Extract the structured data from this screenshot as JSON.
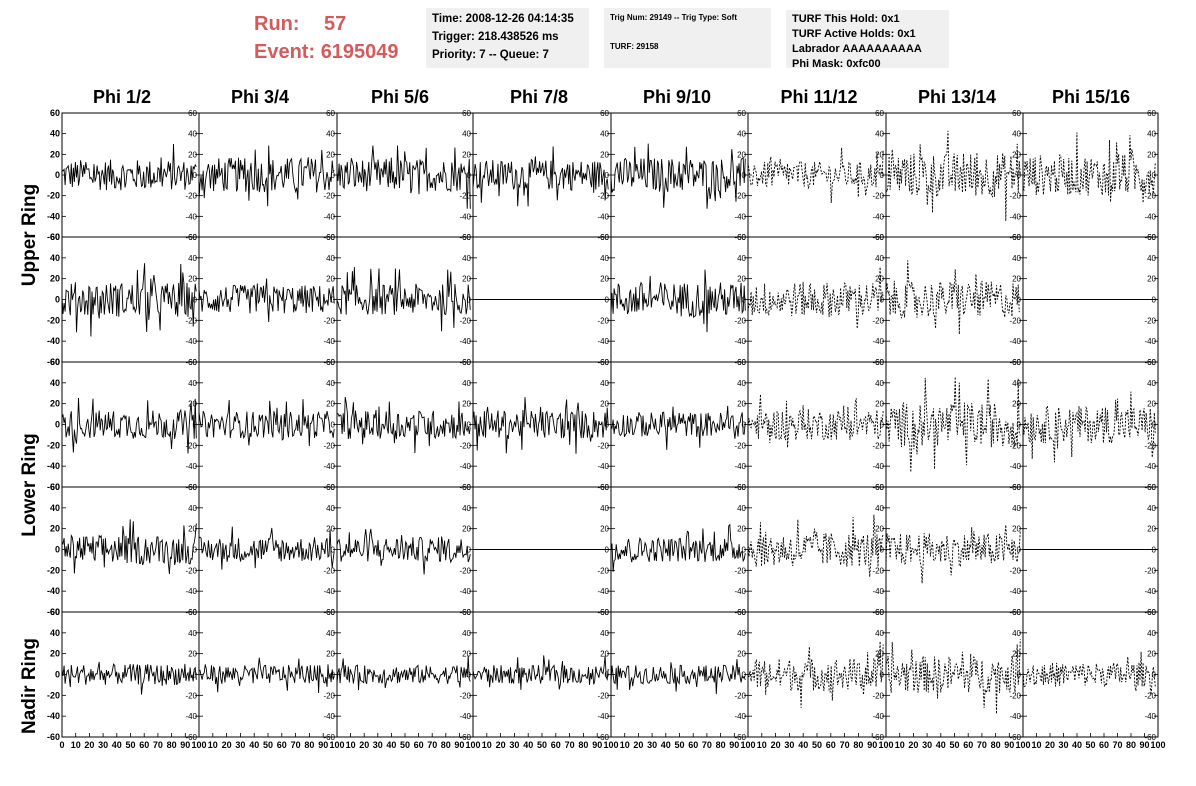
{
  "header": {
    "run_label": "Run:",
    "run_value": "57",
    "event_label": "Event:",
    "event_value": "6195049",
    "time": "Time: 2008-12-26 04:14:35",
    "trigger": "Trigger: 218.438526 ms",
    "priority": "Priority: 7 -- Queue: 7",
    "trig_num": "Trig Num: 29149 -- Trig Type: Soft",
    "turf": "TURF: 29158",
    "turf_this_hold": "TURF This Hold: 0x1",
    "turf_active_holds": "TURF Active Holds: 0x1",
    "labrador": "Labrador AAAAAAAAAA",
    "phi_mask": "Phi Mask: 0xfc00"
  },
  "columns": [
    "Phi 1/2",
    "Phi 3/4",
    "Phi 5/6",
    "Phi 7/8",
    "Phi 9/10",
    "Phi 11/12",
    "Phi 13/14",
    "Phi 15/16"
  ],
  "rows": [
    "Upper Ring",
    "Lower Ring",
    "Nadir Ring"
  ],
  "chart_data": {
    "type": "line",
    "grid_rows": 5,
    "grid_cols": 8,
    "xlim": [
      0,
      100
    ],
    "ylim": [
      -60,
      60
    ],
    "y_ticks": [
      -60,
      -40,
      -20,
      0,
      20,
      40,
      60
    ],
    "x_tick_labels": [
      "0",
      "10",
      "20",
      "30",
      "40",
      "50",
      "60",
      "70",
      "80",
      "90",
      "100"
    ],
    "dashed_columns": [
      5,
      6,
      7
    ],
    "flat_panels": [
      [
        1,
        3
      ],
      [
        1,
        7
      ],
      [
        3,
        3
      ],
      [
        3,
        7
      ]
    ],
    "amplitude": [
      [
        15,
        17,
        16,
        15,
        17,
        13,
        22,
        20
      ],
      [
        17,
        14,
        15,
        0,
        17,
        17,
        18,
        0
      ],
      [
        14,
        13,
        14,
        14,
        12,
        15,
        22,
        18
      ],
      [
        14,
        12,
        12,
        0,
        12,
        17,
        16,
        0
      ],
      [
        10,
        9,
        9,
        9,
        9,
        16,
        18,
        12
      ]
    ],
    "series_color": "#000000"
  }
}
